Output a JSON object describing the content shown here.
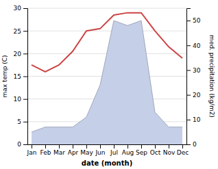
{
  "chart_data": {
    "type": "line",
    "categories": [
      "Jan",
      "Feb",
      "Mar",
      "Apr",
      "May",
      "Jun",
      "Jul",
      "Aug",
      "Sep",
      "Oct",
      "Nov",
      "Dec"
    ],
    "xlabel": "date (month)",
    "ylabel": "max temp (C)",
    "y2label": "med. precipitation (kg/m2)",
    "ylim": [
      0,
      30
    ],
    "yticks": [
      0,
      5,
      10,
      15,
      20,
      25,
      30
    ],
    "y2lim": [
      0,
      55
    ],
    "y2ticks": [
      0,
      10,
      20,
      30,
      40,
      50
    ],
    "grid": true,
    "series": [
      {
        "type": "area",
        "axis": "y2",
        "color": "#c5cfe8",
        "values": [
          5.0,
          7.0,
          7.0,
          7.0,
          11.0,
          24.0,
          50.0,
          48.0,
          50.0,
          13.0,
          7.0,
          7.0
        ]
      },
      {
        "type": "line",
        "color": "#cc4444",
        "values": [
          17.5,
          16.0,
          17.5,
          20.5,
          25.0,
          25.5,
          28.5,
          29.0,
          29.0,
          25.0,
          21.5,
          19.0
        ]
      }
    ]
  }
}
